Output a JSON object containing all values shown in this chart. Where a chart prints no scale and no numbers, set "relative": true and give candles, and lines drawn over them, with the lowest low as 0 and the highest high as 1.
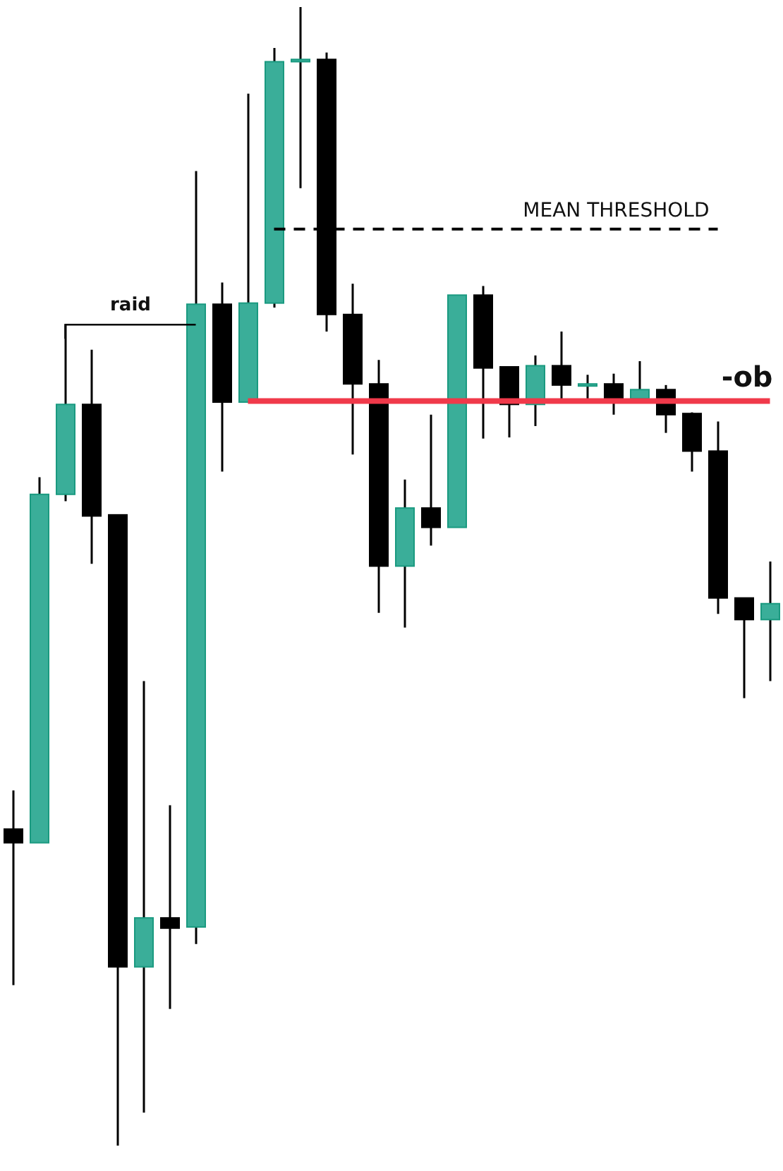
{
  "chart_data": {
    "type": "candlestick",
    "relative": true,
    "categories": [
      null,
      null,
      null,
      null,
      null,
      null,
      null,
      null,
      null,
      null,
      null,
      null,
      null,
      null,
      null,
      null,
      null,
      null,
      null,
      null,
      null,
      null,
      null,
      null,
      null,
      null,
      null,
      null,
      null,
      null
    ],
    "ohlc": [
      [
        0.278,
        0.312,
        0.141,
        0.266
      ],
      [
        0.266,
        0.587,
        0.266,
        0.572
      ],
      [
        0.572,
        0.721,
        0.566,
        0.651
      ],
      [
        0.651,
        0.699,
        0.511,
        0.553
      ],
      [
        0.554,
        0.554,
        0,
        0.157
      ],
      [
        0.157,
        0.408,
        0.029,
        0.2
      ],
      [
        0.2,
        0.299,
        0.12,
        0.191
      ],
      [
        0.192,
        0.856,
        0.177,
        0.739
      ],
      [
        0.739,
        0.758,
        0.592,
        0.653
      ],
      [
        0.653,
        0.924,
        0.653,
        0.74
      ],
      [
        0.74,
        0.964,
        0.736,
        0.952
      ],
      [
        0.952,
        1,
        0.841,
        0.954
      ],
      [
        0.954,
        0.96,
        0.715,
        0.73
      ],
      [
        0.73,
        0.757,
        0.607,
        0.669
      ],
      [
        0.669,
        0.69,
        0.468,
        0.509
      ],
      [
        0.509,
        0.585,
        0.455,
        0.56
      ],
      [
        0.56,
        0.642,
        0.527,
        0.543
      ],
      [
        0.543,
        0.747,
        0.543,
        0.747
      ],
      [
        0.747,
        0.755,
        0.621,
        0.683
      ],
      [
        0.684,
        0.684,
        0.622,
        0.651
      ],
      [
        0.651,
        0.694,
        0.632,
        0.685
      ],
      [
        0.685,
        0.715,
        0.656,
        0.668
      ],
      [
        0.668,
        0.677,
        0.654,
        0.669
      ],
      [
        0.669,
        0.678,
        0.642,
        0.656
      ],
      [
        0.656,
        0.689,
        0.652,
        0.664
      ],
      [
        0.664,
        0.668,
        0.626,
        0.642
      ],
      [
        0.643,
        0.644,
        0.592,
        0.61
      ],
      [
        0.61,
        0.636,
        0.467,
        0.481
      ],
      [
        0.481,
        0.481,
        0.393,
        0.462
      ],
      [
        0.462,
        0.513,
        0.408,
        0.476
      ]
    ],
    "colors": [
      "#000000",
      "#3aae99",
      "#3aae99",
      "#000000",
      "#000000",
      "#3aae99",
      "#000000",
      "#3aae99",
      "#000000",
      "#3aae99",
      "#3aae99",
      "#3aae99",
      "#000000",
      "#000000",
      "#000000",
      "#3aae99",
      "#000000",
      "#3aae99",
      "#000000",
      "#000000",
      "#3aae99",
      "#000000",
      "#3aae99",
      "#000000",
      "#3aae99",
      "#000000",
      "#000000",
      "#000000",
      "#000000",
      "#3aae99"
    ],
    "ref_lines": [
      {
        "axis": "y",
        "value": 0.805,
        "label": "MEAN THRESHOLD",
        "color": "#000000",
        "line_style": "dashed"
      },
      {
        "axis": "y",
        "value": 0.654,
        "label": "-ob",
        "color": "#f0394a",
        "line_style": "solid"
      }
    ],
    "annotations": [
      "raid"
    ],
    "grid": false,
    "legend": false
  }
}
